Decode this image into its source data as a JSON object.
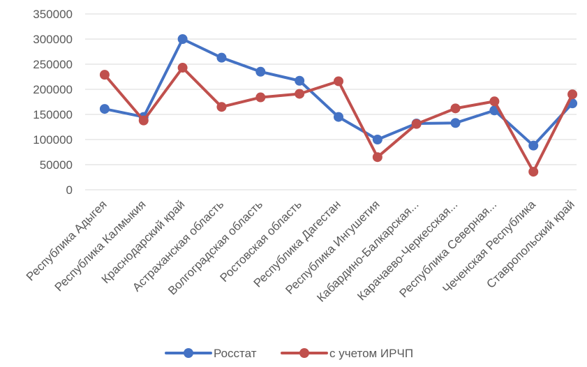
{
  "chart_data": {
    "type": "line",
    "categories": [
      "Республика Адыгея",
      "Республика Калмыкия",
      "Краснодарский край",
      "Астраханская область",
      "Волгоградская область",
      "Ростовская область",
      "Республика Дагестан",
      "Республика Ингушетия",
      "Кабардино-Балкарская...",
      "Карачаево-Черкесская...",
      "Республика Северная...",
      "Чеченская Республика",
      "Ставропольский край"
    ],
    "series": [
      {
        "name": "Росстат",
        "color": "#4472C4",
        "values": [
          161000,
          145000,
          300000,
          263000,
          235000,
          217000,
          145000,
          100000,
          132000,
          133000,
          158000,
          88000,
          172000
        ]
      },
      {
        "name": "с учетом ИРЧП",
        "color": "#C0504D",
        "values": [
          229000,
          138000,
          243000,
          165000,
          184000,
          191000,
          216000,
          65000,
          131000,
          162000,
          176000,
          36000,
          190000
        ]
      }
    ],
    "y_ticks": [
      "0",
      "50000",
      "100000",
      "150000",
      "200000",
      "250000",
      "300000",
      "350000"
    ],
    "ylim": [
      0,
      350000
    ],
    "grid": true,
    "legend_position": "bottom",
    "title": "",
    "xlabel": "",
    "ylabel": ""
  }
}
